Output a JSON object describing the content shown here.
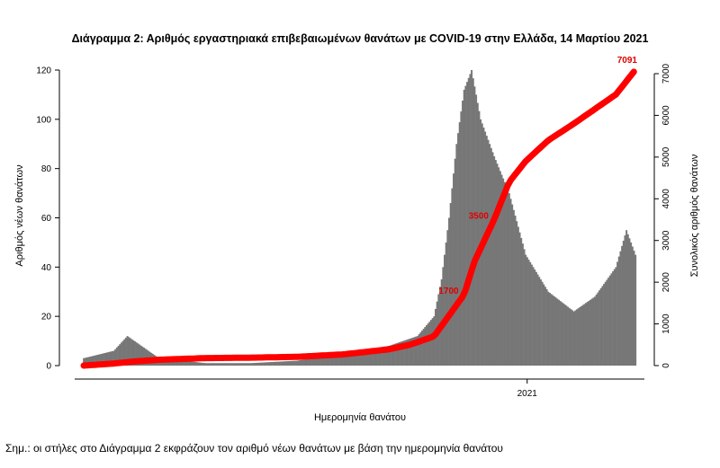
{
  "chart_data": {
    "type": "bar",
    "title": "Διάγραμμα 2: Αριθμός εργαστηριακά επιβεβαιωμένων θανάτων με COVID-19 στην Ελλάδα, 14 Μαρτίου 2021",
    "xlabel": "Ημερομηνία θανάτου",
    "ylabel_left": "Αριθμός νέων θανάτων",
    "ylabel_right": "Συνολικός αριθμός θανάτων",
    "x_tick_labels": [
      "2021"
    ],
    "x_tick_dates": [
      "2021-01-01"
    ],
    "ylim_left": [
      0,
      120
    ],
    "yticks_left": [
      0,
      20,
      40,
      60,
      80,
      100,
      120
    ],
    "ylim_right": [
      0,
      7000
    ],
    "yticks_right": [
      0,
      1000,
      2000,
      3000,
      4000,
      5000,
      6000,
      7000
    ],
    "x_range": [
      "2020-03-12",
      "2021-03-14"
    ],
    "bar_color": "#777777",
    "line_color": "#ff0000",
    "daily_deaths": {
      "name": "Αριθμός νέων θανάτων",
      "dates": [
        "2020-03-12",
        "2020-04-01",
        "2020-04-10",
        "2020-05-01",
        "2020-06-01",
        "2020-07-01",
        "2020-08-01",
        "2020-09-01",
        "2020-10-01",
        "2020-10-20",
        "2020-10-31",
        "2020-11-05",
        "2020-11-10",
        "2020-11-15",
        "2020-11-20",
        "2020-11-25",
        "2020-12-01",
        "2020-12-10",
        "2020-12-20",
        "2020-12-31",
        "2021-01-15",
        "2021-02-01",
        "2021-02-15",
        "2021-03-01",
        "2021-03-08",
        "2021-03-14"
      ],
      "values": [
        3,
        6,
        12,
        3,
        1,
        1,
        2,
        5,
        8,
        12,
        20,
        35,
        60,
        90,
        112,
        120,
        100,
        85,
        70,
        45,
        30,
        22,
        28,
        40,
        55,
        45
      ]
    },
    "cumulative_deaths": {
      "name": "Συνολικός αριθμός θανάτων",
      "dates": [
        "2020-03-12",
        "2020-04-01",
        "2020-04-15",
        "2020-05-01",
        "2020-06-01",
        "2020-07-01",
        "2020-08-01",
        "2020-09-01",
        "2020-10-01",
        "2020-10-15",
        "2020-10-31",
        "2020-11-10",
        "2020-11-20",
        "2020-11-27",
        "2020-12-10",
        "2020-12-20",
        "2020-12-31",
        "2021-01-15",
        "2021-02-01",
        "2021-02-15",
        "2021-03-01",
        "2021-03-14"
      ],
      "values": [
        0,
        50,
        100,
        140,
        180,
        190,
        210,
        270,
        390,
        500,
        700,
        1200,
        1700,
        2500,
        3500,
        4400,
        4900,
        5400,
        5800,
        6150,
        6500,
        7091
      ]
    },
    "annotations": [
      {
        "text": "1700",
        "date": "2020-11-20",
        "value": 1700
      },
      {
        "text": "3500",
        "date": "2020-12-10",
        "value": 3500
      },
      {
        "text": "7091",
        "date": "2021-03-14",
        "value": 7091
      }
    ]
  },
  "note": "Σημ.: οι στήλες στο Διάγραμμα 2 εκφράζουν τον αριθμό νέων θανάτων με βάση την ημερομηνία θανάτου"
}
